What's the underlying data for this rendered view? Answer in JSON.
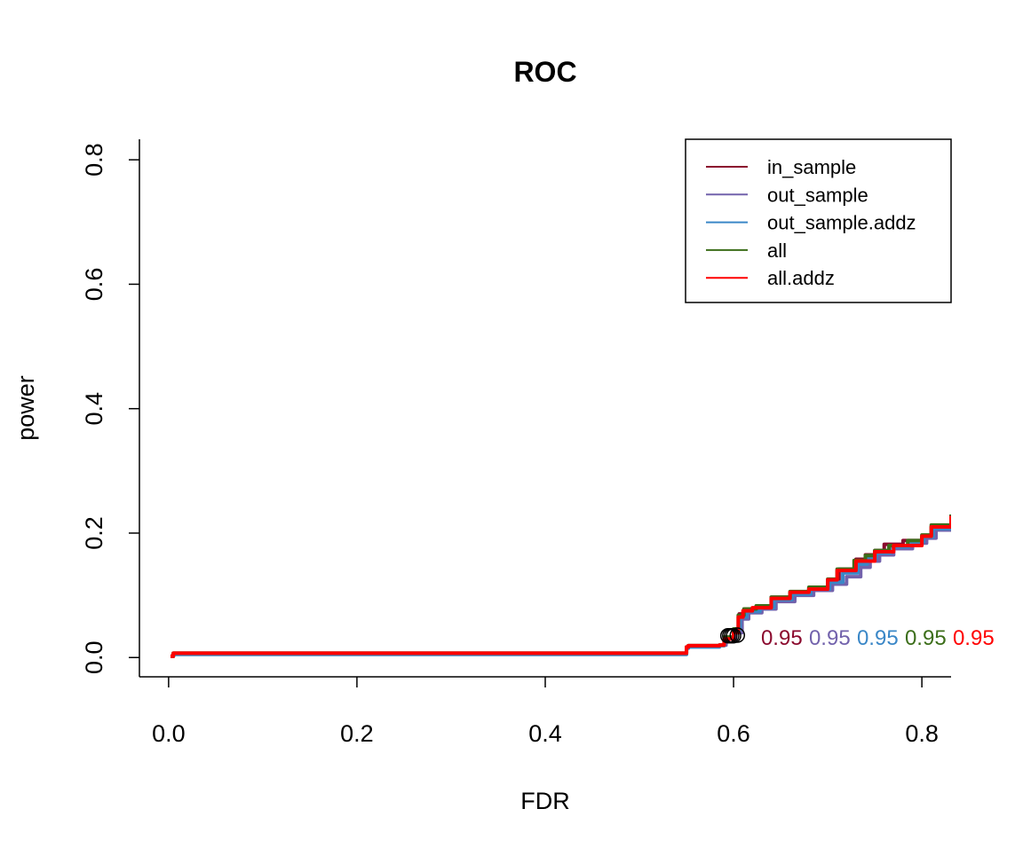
{
  "chart_data": {
    "type": "line",
    "title": "ROC",
    "xlabel": "FDR",
    "ylabel": "power",
    "xlim": [
      -0.031,
      0.831
    ],
    "ylim": [
      -0.031,
      0.833
    ],
    "xticks": [
      "0.0",
      "0.2",
      "0.4",
      "0.6",
      "0.8"
    ],
    "yticks": [
      "0.0",
      "0.2",
      "0.4",
      "0.6",
      "0.8"
    ],
    "grid": false,
    "legend_position": "top-right",
    "series": [
      {
        "name": "in_sample",
        "color": "#8B0A2E",
        "x": [
          0.002,
          0.005,
          0.55,
          0.552,
          0.585,
          0.59,
          0.6,
          0.606,
          0.612,
          0.625,
          0.64,
          0.66,
          0.68,
          0.7,
          0.712,
          0.73,
          0.74,
          0.75,
          0.76,
          0.78,
          0.8,
          0.81,
          0.831
        ],
        "y": [
          0.002,
          0.007,
          0.017,
          0.019,
          0.02,
          0.03,
          0.045,
          0.07,
          0.078,
          0.082,
          0.097,
          0.105,
          0.112,
          0.125,
          0.142,
          0.158,
          0.165,
          0.172,
          0.182,
          0.188,
          0.195,
          0.21,
          0.228
        ],
        "marker": {
          "x": 0.598,
          "y": 0.035,
          "label": "0.95"
        }
      },
      {
        "name": "out_sample",
        "color": "#7262AC",
        "x": [
          0.002,
          0.005,
          0.55,
          0.552,
          0.585,
          0.592,
          0.602,
          0.609,
          0.616,
          0.63,
          0.645,
          0.665,
          0.685,
          0.705,
          0.72,
          0.735,
          0.745,
          0.755,
          0.77,
          0.79,
          0.805,
          0.815,
          0.831
        ],
        "y": [
          0.002,
          0.006,
          0.016,
          0.018,
          0.02,
          0.03,
          0.04,
          0.062,
          0.072,
          0.078,
          0.09,
          0.1,
          0.108,
          0.118,
          0.13,
          0.145,
          0.155,
          0.165,
          0.175,
          0.184,
          0.192,
          0.205,
          0.225
        ],
        "marker": {
          "x": 0.6,
          "y": 0.035,
          "label": "0.95"
        }
      },
      {
        "name": "out_sample.addz",
        "color": "#3A87C7",
        "x": [
          0.002,
          0.005,
          0.55,
          0.552,
          0.585,
          0.59,
          0.6,
          0.607,
          0.614,
          0.628,
          0.643,
          0.662,
          0.682,
          0.702,
          0.716,
          0.732,
          0.742,
          0.752,
          0.766,
          0.786,
          0.802,
          0.812,
          0.831
        ],
        "y": [
          0.002,
          0.005,
          0.015,
          0.017,
          0.019,
          0.032,
          0.045,
          0.065,
          0.074,
          0.08,
          0.093,
          0.102,
          0.11,
          0.121,
          0.136,
          0.15,
          0.16,
          0.168,
          0.178,
          0.186,
          0.194,
          0.207,
          0.226
        ],
        "marker": {
          "x": 0.594,
          "y": 0.035,
          "label": "0.95"
        }
      },
      {
        "name": "all",
        "color": "#3C6E1A",
        "x": [
          0.002,
          0.005,
          0.55,
          0.552,
          0.585,
          0.59,
          0.6,
          0.605,
          0.611,
          0.624,
          0.64,
          0.66,
          0.68,
          0.7,
          0.71,
          0.728,
          0.74,
          0.75,
          0.765,
          0.785,
          0.8,
          0.81,
          0.831
        ],
        "y": [
          0.002,
          0.007,
          0.017,
          0.019,
          0.02,
          0.033,
          0.046,
          0.068,
          0.078,
          0.083,
          0.097,
          0.106,
          0.113,
          0.126,
          0.142,
          0.156,
          0.164,
          0.172,
          0.18,
          0.188,
          0.197,
          0.213,
          0.23
        ],
        "marker": {
          "x": 0.604,
          "y": 0.036,
          "label": "0.95"
        }
      },
      {
        "name": "all.addz",
        "color": "#FF0000",
        "x": [
          0.002,
          0.005,
          0.55,
          0.552,
          0.585,
          0.59,
          0.6,
          0.605,
          0.61,
          0.62,
          0.64,
          0.66,
          0.68,
          0.7,
          0.71,
          0.73,
          0.75,
          0.77,
          0.8,
          0.81,
          0.831
        ],
        "y": [
          0.002,
          0.007,
          0.017,
          0.019,
          0.02,
          0.03,
          0.04,
          0.065,
          0.075,
          0.08,
          0.095,
          0.105,
          0.11,
          0.125,
          0.14,
          0.155,
          0.17,
          0.18,
          0.195,
          0.21,
          0.228
        ],
        "marker": {
          "x": 0.596,
          "y": 0.035,
          "label": "0.95"
        }
      }
    ],
    "label_positions_x": [
      0.652,
      0.66,
      0.648,
      0.663,
      0.656
    ],
    "label_y": 0.033
  }
}
